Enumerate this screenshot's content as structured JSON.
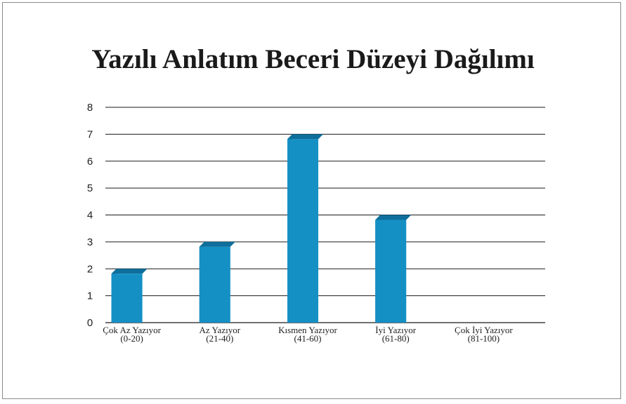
{
  "chart_data": {
    "type": "bar",
    "title": "Yazılı Anlatım Beceri Düzeyi Dağılımı",
    "categories": [
      [
        "Çok Az Yazıyor",
        "(0-20)"
      ],
      [
        "Az Yazıyor",
        "(21-40)"
      ],
      [
        "Kısmen Yazıyor",
        "(41-60)"
      ],
      [
        "İyi Yazıyor",
        "(61-80)"
      ],
      [
        "Çok İyi Yazıyor",
        "(81-100)"
      ]
    ],
    "values": [
      2,
      3,
      7,
      4,
      0
    ],
    "ylim": [
      0,
      8
    ],
    "yticks": [
      0,
      1,
      2,
      3,
      4,
      5,
      6,
      7,
      8
    ],
    "grid": true,
    "legend": "none",
    "colors": {
      "bar_front": "#1590c4",
      "bar_side": "#0b5f86",
      "bar_top": "#0e6f9c",
      "grid": "#1a1a1a"
    }
  }
}
